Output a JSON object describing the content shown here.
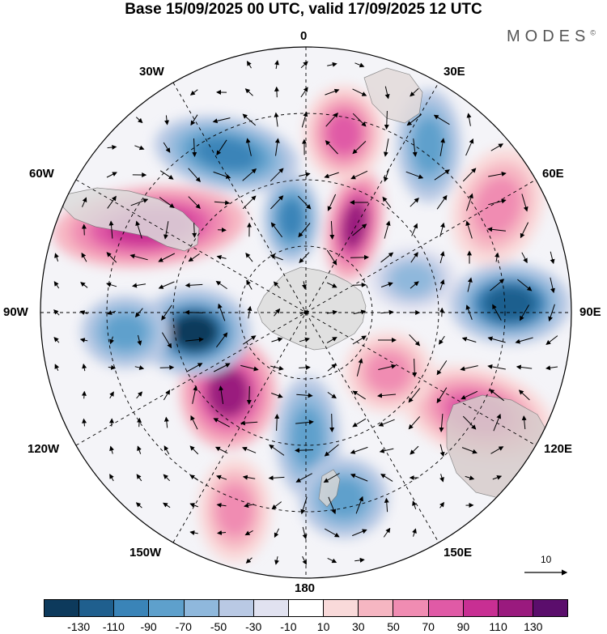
{
  "title": "Base 15/09/2025 00 UTC, valid 17/09/2025 12 UTC",
  "brand": {
    "name": "MODES",
    "mark": "©"
  },
  "longitude_labels": {
    "lon_0": "0",
    "lon_30e": "30E",
    "lon_60e": "60E",
    "lon_90e": "90E",
    "lon_120e": "120E",
    "lon_150e": "150E",
    "lon_180": "180",
    "lon_150w": "150W",
    "lon_120w": "120W",
    "lon_90w": "90W",
    "lon_60w": "60W",
    "lon_30w": "30W"
  },
  "vector_reference": {
    "label": "10"
  },
  "colorbar": {
    "colors": [
      "#0d3a5c",
      "#1f5f8e",
      "#3a84b8",
      "#5ea0cc",
      "#8fb8dc",
      "#b9c9e4",
      "#e1e2f0",
      "#ffffff",
      "#f9dada",
      "#f6b6c2",
      "#f08cb2",
      "#e05aa6",
      "#c82f93",
      "#9a1a7e",
      "#5b0e6c"
    ],
    "ticks": [
      "-130",
      "-110",
      "-90",
      "-70",
      "-50",
      "-30",
      "-10",
      "10",
      "30",
      "50",
      "70",
      "90",
      "110",
      "130"
    ]
  },
  "map_colors": {
    "land_fill": "#dedede",
    "graticule": "#000000",
    "background": "#ffffff"
  }
}
